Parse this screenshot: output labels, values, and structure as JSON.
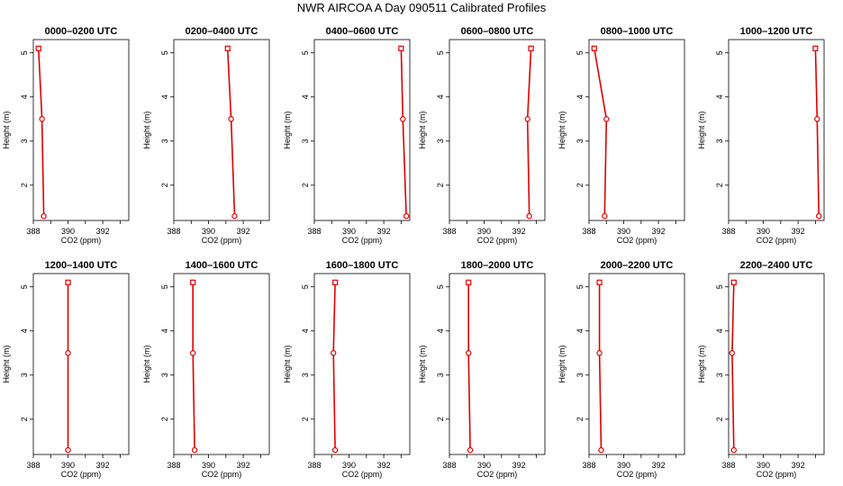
{
  "title": "NWR AIRCOA A  Day 090511  Calibrated Profiles",
  "colors": {
    "series": "#e00000",
    "axis": "#000000"
  },
  "chart_data": {
    "type": "line",
    "grid": false,
    "xlabel": "CO2 (ppm)",
    "ylabel": "Height (m)",
    "xlim": [
      388,
      393.5
    ],
    "ylim": [
      1.2,
      5.3
    ],
    "xticks": [
      388,
      390,
      392
    ],
    "yticks": [
      2,
      3,
      4,
      5
    ],
    "panels": [
      {
        "title": "0000–0200 UTC",
        "x": [
          388.6,
          388.5,
          388.3
        ],
        "y": [
          1.3,
          3.5,
          5.1
        ]
      },
      {
        "title": "0200–0400 UTC",
        "x": [
          391.5,
          391.3,
          391.1
        ],
        "y": [
          1.3,
          3.5,
          5.1
        ]
      },
      {
        "title": "0400–0600 UTC",
        "x": [
          393.3,
          393.1,
          393.0
        ],
        "y": [
          1.3,
          3.5,
          5.1
        ]
      },
      {
        "title": "0600–0800 UTC",
        "x": [
          392.6,
          392.5,
          392.7
        ],
        "y": [
          1.3,
          3.5,
          5.1
        ]
      },
      {
        "title": "0800–1000 UTC",
        "x": [
          388.9,
          389.0,
          388.3
        ],
        "y": [
          1.3,
          3.5,
          5.1
        ]
      },
      {
        "title": "1000–1200 UTC",
        "x": [
          393.2,
          393.1,
          393.0
        ],
        "y": [
          1.3,
          3.5,
          5.1
        ]
      },
      {
        "title": "1200–1400 UTC",
        "x": [
          390.0,
          390.0,
          390.0
        ],
        "y": [
          1.3,
          3.5,
          5.1
        ]
      },
      {
        "title": "1400–1600 UTC",
        "x": [
          389.2,
          389.1,
          389.1
        ],
        "y": [
          1.3,
          3.5,
          5.1
        ]
      },
      {
        "title": "1600–1800 UTC",
        "x": [
          389.2,
          389.1,
          389.2
        ],
        "y": [
          1.3,
          3.5,
          5.1
        ]
      },
      {
        "title": "1800–2000 UTC",
        "x": [
          389.2,
          389.1,
          389.1
        ],
        "y": [
          1.3,
          3.5,
          5.1
        ]
      },
      {
        "title": "2000–2200 UTC",
        "x": [
          388.7,
          388.6,
          388.6
        ],
        "y": [
          1.3,
          3.5,
          5.1
        ]
      },
      {
        "title": "2200–2400 UTC",
        "x": [
          388.3,
          388.2,
          388.3
        ],
        "y": [
          1.3,
          3.5,
          5.1
        ]
      }
    ]
  }
}
